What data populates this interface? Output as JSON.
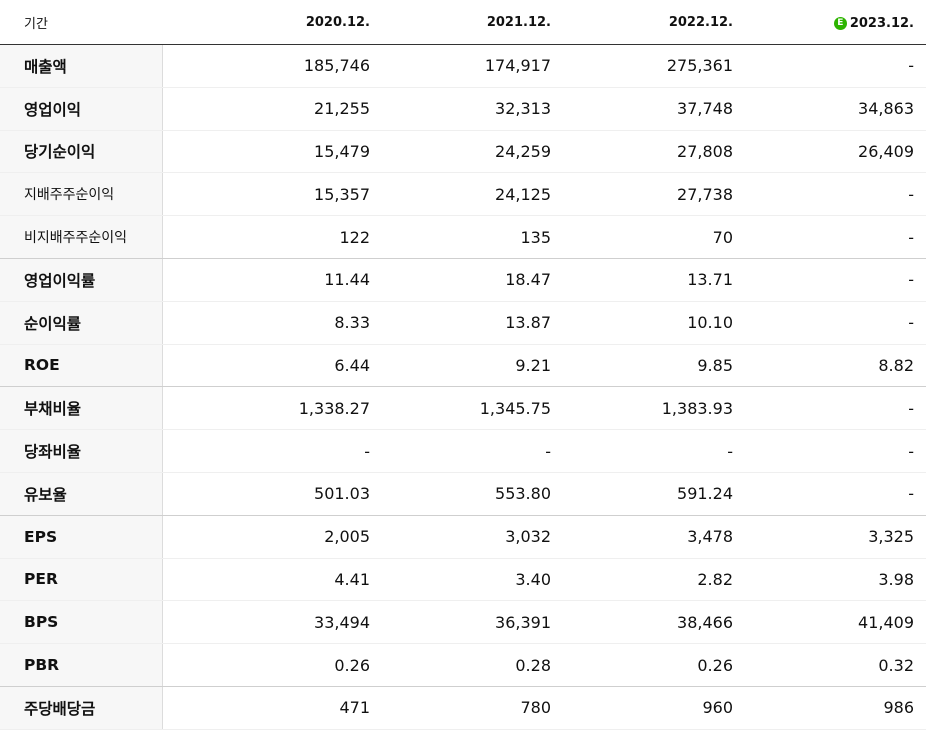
{
  "header": {
    "label": "기간",
    "periods": [
      "2020.12.",
      "2021.12.",
      "2022.12.",
      "2023.12."
    ],
    "estimate_badge": "E",
    "estimate_color": "#2db400"
  },
  "rows": [
    {
      "label": "매출액",
      "values": [
        "185,746",
        "174,917",
        "275,361",
        "-"
      ]
    },
    {
      "label": "영업이익",
      "values": [
        "21,255",
        "32,313",
        "37,748",
        "34,863"
      ]
    },
    {
      "label": "당기순이익",
      "values": [
        "15,479",
        "24,259",
        "27,808",
        "26,409"
      ]
    },
    {
      "label": "지배주주순이익",
      "values": [
        "15,357",
        "24,125",
        "27,738",
        "-"
      ]
    },
    {
      "label": "비지배주주순이익",
      "values": [
        "122",
        "135",
        "70",
        "-"
      ]
    },
    {
      "label": "영업이익률",
      "values": [
        "11.44",
        "18.47",
        "13.71",
        "-"
      ]
    },
    {
      "label": "순이익률",
      "values": [
        "8.33",
        "13.87",
        "10.10",
        "-"
      ]
    },
    {
      "label": "ROE",
      "values": [
        "6.44",
        "9.21",
        "9.85",
        "8.82"
      ]
    },
    {
      "label": "부채비율",
      "values": [
        "1,338.27",
        "1,345.75",
        "1,383.93",
        "-"
      ]
    },
    {
      "label": "당좌비율",
      "values": [
        "-",
        "-",
        "-",
        "-"
      ]
    },
    {
      "label": "유보율",
      "values": [
        "501.03",
        "553.80",
        "591.24",
        "-"
      ]
    },
    {
      "label": "EPS",
      "values": [
        "2,005",
        "3,032",
        "3,478",
        "3,325"
      ]
    },
    {
      "label": "PER",
      "values": [
        "4.41",
        "3.40",
        "2.82",
        "3.98"
      ]
    },
    {
      "label": "BPS",
      "values": [
        "33,494",
        "36,391",
        "38,466",
        "41,409"
      ]
    },
    {
      "label": "PBR",
      "values": [
        "0.26",
        "0.28",
        "0.26",
        "0.32"
      ]
    },
    {
      "label": "주당배당금",
      "values": [
        "471",
        "780",
        "960",
        "986"
      ]
    }
  ]
}
